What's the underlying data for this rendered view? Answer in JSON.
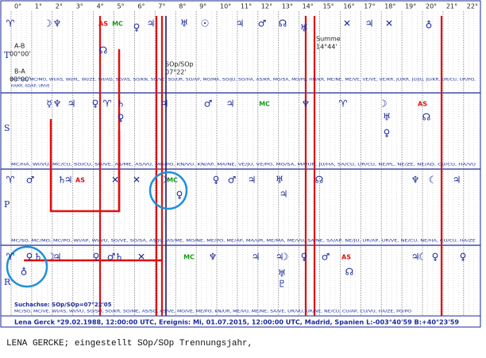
{
  "degree_labels": [
    "0°",
    "1°",
    "2°",
    "3°",
    "4°",
    "5°",
    "6°",
    "7°",
    "8°",
    "9°",
    "10°",
    "11°",
    "12°",
    "13°",
    "14°",
    "15°",
    "16°",
    "17°",
    "18°",
    "19°",
    "20°",
    "21°",
    "22°"
  ],
  "rows": [
    {
      "label": "T",
      "abbrev_lines": [
        "MC/SO, MC/MO, WI/AS, WI/PL, WI/ZE, WI/AD, SO/AS, SO/KN, SO/VE, SO/UR, SO/AP, MO/MA, SO/JU, SO/HA, AS/KR, MO/SA, MO/PL, HN/KR, ME/NE, ME/VE, VE/VE, VE/KR, JU/KR, JU/JU, JU/KR, UR/CU, UR/PO,",
        "HA/KR, AD/AP, UR/VE"
      ],
      "glyphs": [
        "♈",
        "☽",
        "♆",
        "AS",
        "MC",
        "♀",
        "♃",
        "♅",
        "☉",
        "♃",
        "♂",
        "☊",
        "♅",
        "✕",
        "♃",
        "✕",
        "♁",
        "☊"
      ]
    },
    {
      "label": "S",
      "abbrev_lines": [
        "MC/HA, WI/VU, MC/CU, SO/CU, SO/VE, AS/ME, AS/VU, MO/PO, KN/VU, KN/AP, MA/NE, VE/JU, VE/PO, MO/SA, MA/UR, JU/HA, SA/CU, UR/CU, NE/PL, NE/ZE, NE/AD, CU/CU, HA/VU"
      ],
      "glyphs": [
        "☿",
        "♆",
        "♃",
        "♀",
        "♈",
        "♄",
        "♀",
        "♃",
        "♂",
        "♃",
        "MC",
        "♆",
        "♈",
        "☽",
        "♅",
        "AS",
        "☊",
        "♀"
      ]
    },
    {
      "label": "P",
      "abbrev_lines": [
        "MC/SO, MC/MO, MC/PO, WI/AP, WI/VU, SO/VE, SO/SA, AS/JU, AS/ME, MO/NE, ME/PO, ME/AP, MA/UR, ME/MA, ME/VU, SA/NE, SA/AP, NE/JU, UR/AP, UR/VE, NE/CU, NE/HA, CU/CU, HA/ZE"
      ],
      "glyphs": [
        "♈",
        "♂",
        "♄",
        "♃",
        "AS",
        "✕",
        "✕",
        "☽",
        "MC",
        "♀",
        "♀",
        "♂",
        "♃",
        "♅",
        "♃",
        "☊",
        "♆",
        "☾",
        "♃"
      ]
    },
    {
      "label": "R",
      "abbrev_lines": [
        "MC/SO, MC/VE, WI/AS, WI/VU, SO/SO, SO/KR, SO/ME, AS/SO, AS/VE, MO/VE, ME/PO, KN/UR, ME/VU, ME/NE, SA/VE, UR/VU, UR/NE, NE/CU, CU/AP, CU/VU, HA/ZE, PO/PO"
      ],
      "glyphs": [
        "♈",
        "♀",
        "♄",
        "♁",
        "☽",
        "♃",
        "♀",
        "♂",
        "♄",
        "✕",
        "MC",
        "♆",
        "♃",
        "♃",
        "☽",
        "♀",
        "♂",
        "AS",
        "☊",
        "♃",
        "☾",
        "♀",
        "♀",
        "♅",
        "♇"
      ]
    }
  ],
  "annotations": {
    "a_b": "A-B",
    "a_b_value": "00°00'",
    "b_a": "B-A",
    "b_a_value": "00°00'",
    "axis": "SOp/SOp",
    "axis_value": "07°22'",
    "sum": "Summe",
    "sum_value": "14°44'"
  },
  "search_axis": "Suchachse: SOp/SOp=07°22'05",
  "footer": "Lena Gerck *29.02.1988, 12:00:00 UTC, Ereignis: Mi, 01.07.2015, 12:00:00 UTC, Madrid, Spanien L:-003°40'59 B:+40°23'59",
  "caption": "LENA GERCKE; eingestellt SOp/SOp Trennungsjahr,"
}
